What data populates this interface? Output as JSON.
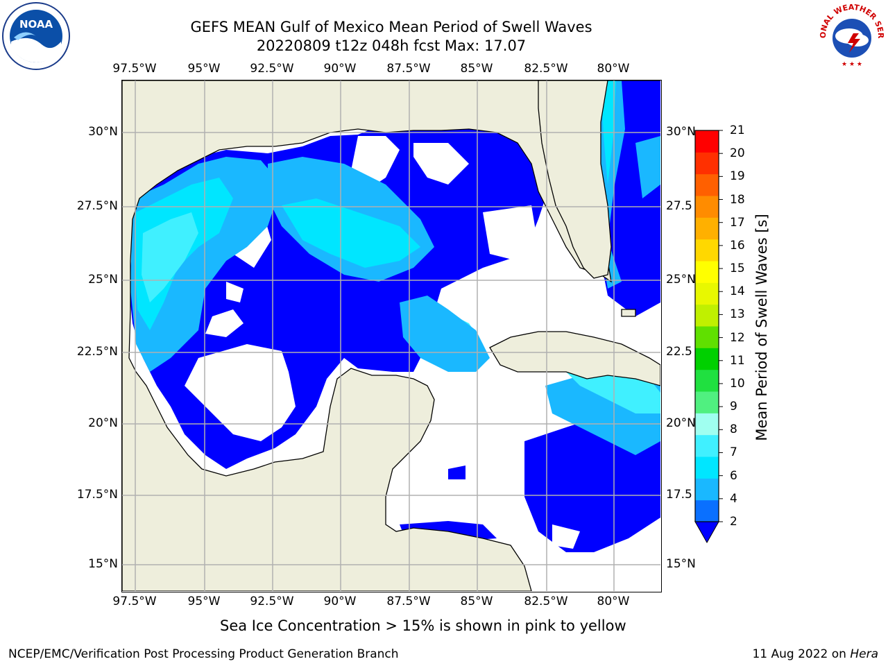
{
  "title": {
    "line1": "GEFS MEAN Gulf of Mexico Mean Period of Swell Waves",
    "line2": "20220809 t12z 048h fcst   Max: 17.07"
  },
  "logos": {
    "left": {
      "icon": "noaa-logo",
      "text": "NOAA"
    },
    "right": {
      "icon": "nws-logo",
      "text": "NATIONAL WEATHER SERVICE"
    }
  },
  "map": {
    "lon_ticks": [
      "97.5°W",
      "95°W",
      "92.5°W",
      "90°W",
      "87.5°W",
      "85°W",
      "82.5°W",
      "80°W"
    ],
    "lat_ticks_left": [
      "30°N",
      "27.5°N",
      "25°N",
      "22.5°N",
      "20°N",
      "17.5°N",
      "15°N"
    ],
    "lat_ticks_right": [
      "30°N",
      "27.5",
      "25°N",
      "22.5",
      "20°N",
      "17.5",
      "15°N"
    ],
    "colors": {
      "land": "#eeeedc",
      "water_background": "#ffffff",
      "grid": "#b0b0b0"
    }
  },
  "colorbar": {
    "title": "Mean Period of Swell Waves [s]",
    "tick_labels": [
      "2",
      "4",
      "6",
      "7",
      "8",
      "9",
      "10",
      "11",
      "12",
      "13",
      "14",
      "15",
      "16",
      "17",
      "18",
      "19",
      "20",
      "21"
    ],
    "bins": [
      {
        "from": 2,
        "to": 4,
        "color": "#0a70ff"
      },
      {
        "from": 4,
        "to": 6,
        "color": "#1ab8ff"
      },
      {
        "from": 6,
        "to": 7,
        "color": "#00e6ff"
      },
      {
        "from": 7,
        "to": 8,
        "color": "#40f0ff"
      },
      {
        "from": 8,
        "to": 9,
        "color": "#a0fff0"
      },
      {
        "from": 9,
        "to": 10,
        "color": "#50f080"
      },
      {
        "from": 10,
        "to": 11,
        "color": "#20e040"
      },
      {
        "from": 11,
        "to": 12,
        "color": "#00d000"
      },
      {
        "from": 12,
        "to": 13,
        "color": "#60e000"
      },
      {
        "from": 13,
        "to": 14,
        "color": "#c0f000"
      },
      {
        "from": 14,
        "to": 15,
        "color": "#e8f800"
      },
      {
        "from": 15,
        "to": 16,
        "color": "#ffff00"
      },
      {
        "from": 16,
        "to": 17,
        "color": "#ffd800"
      },
      {
        "from": 17,
        "to": 18,
        "color": "#ffb000"
      },
      {
        "from": 18,
        "to": 19,
        "color": "#ff8c00"
      },
      {
        "from": 19,
        "to": 20,
        "color": "#ff6000"
      },
      {
        "from": 20,
        "to": 21,
        "color": "#ff3000"
      },
      {
        "from": 21,
        "to": 22,
        "color": "#ff0000"
      }
    ],
    "extend_color": "#0000ff"
  },
  "footer": {
    "sea_ice_note": "Sea Ice Concentration > 15% is shown in pink to yellow",
    "credit_left": "NCEP/EMC/Verification Post Processing Product Generation Branch",
    "credit_date": "11 Aug 2022 on ",
    "credit_machine": "Hera"
  }
}
